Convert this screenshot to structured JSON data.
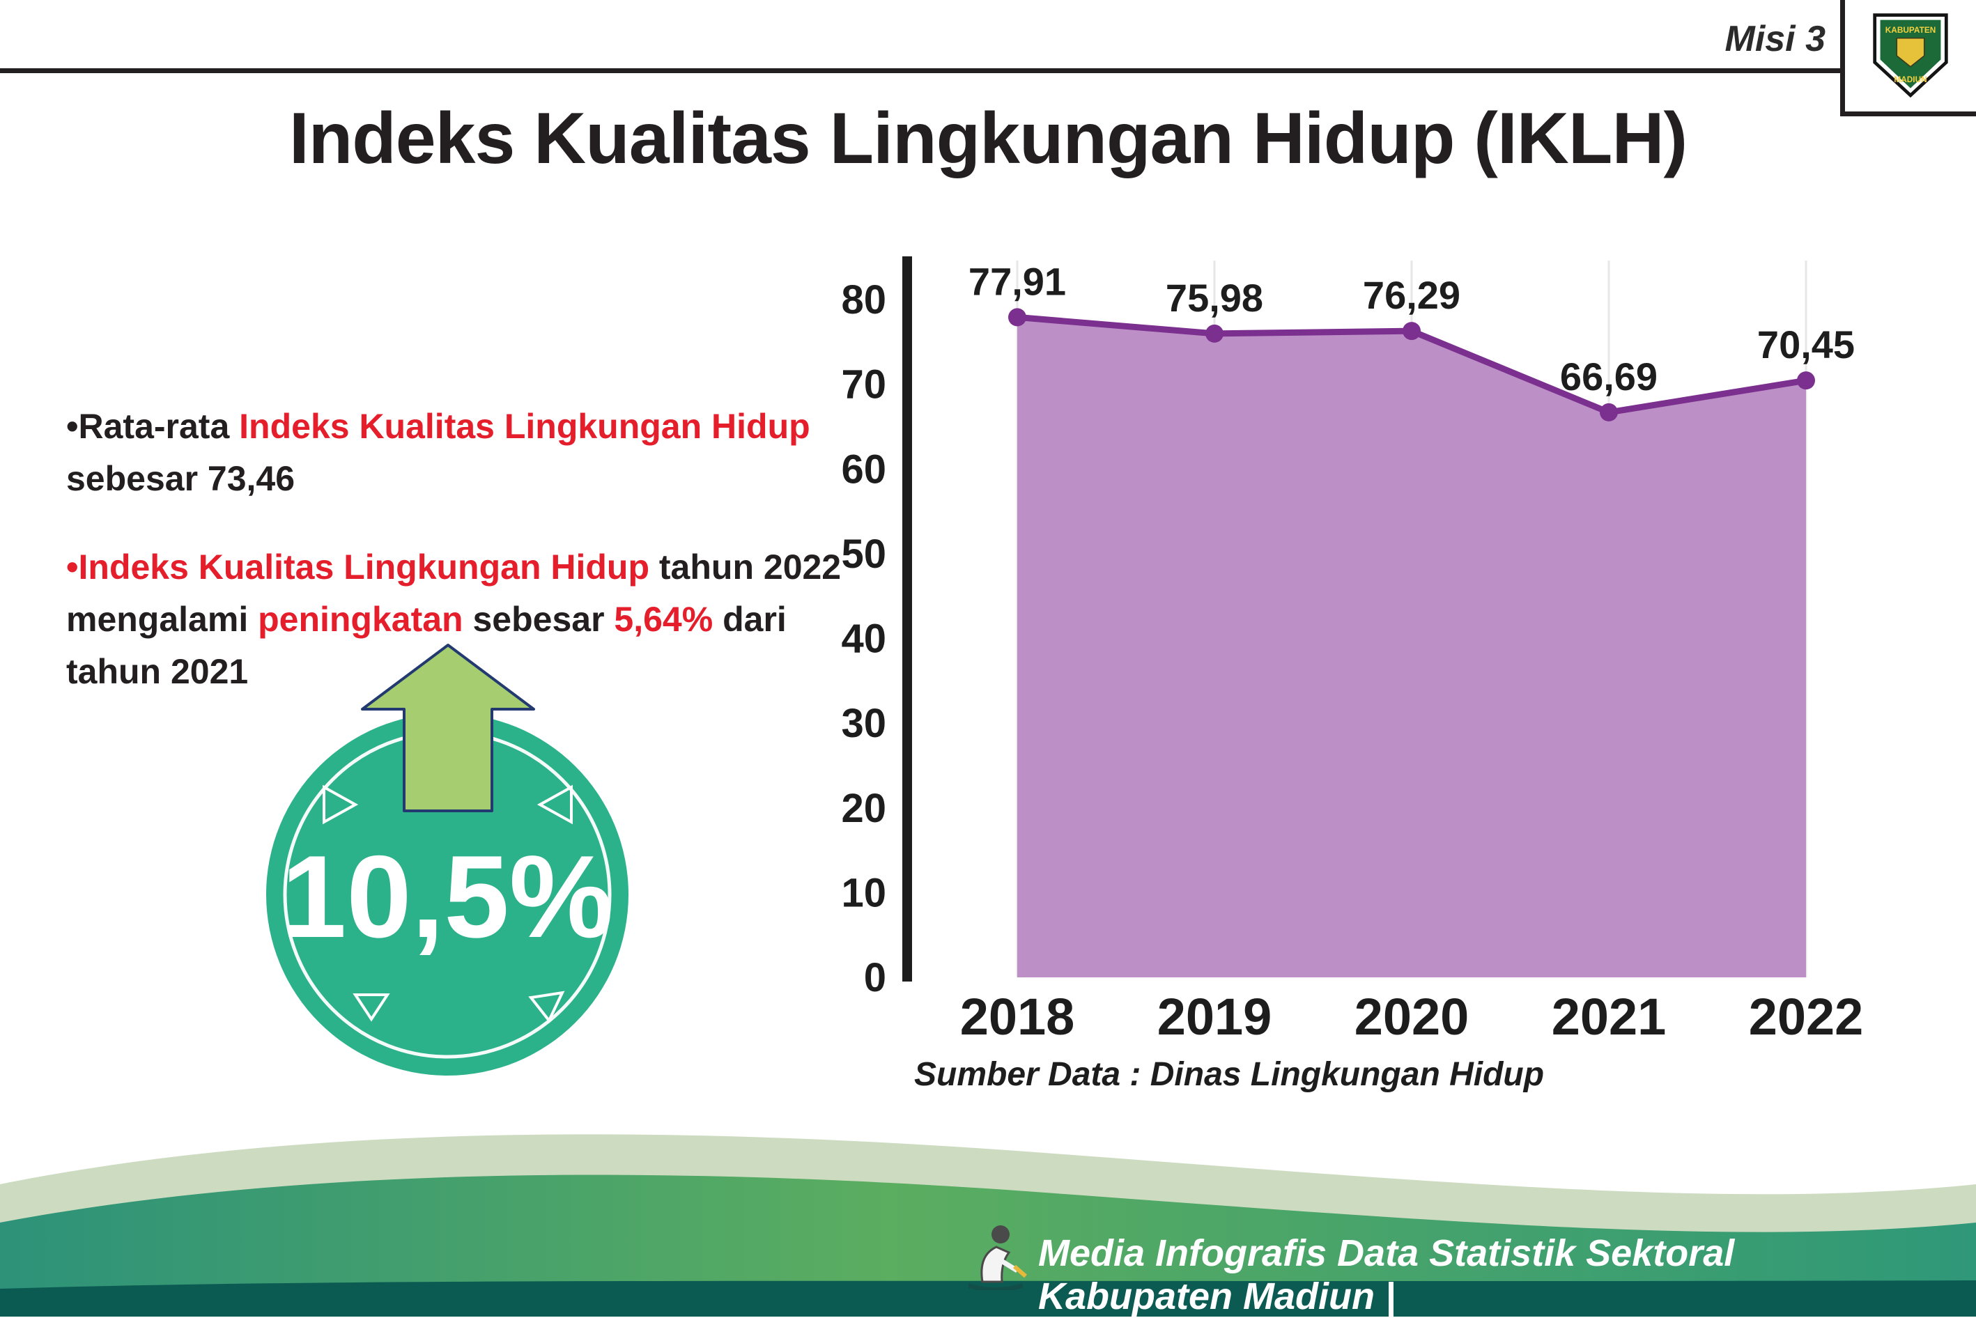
{
  "header": {
    "misi_label": "Misi 3",
    "logo": {
      "line1": "KABUPATEN",
      "line2": "MADIUN"
    }
  },
  "title": "Indeks Kualitas Lingkungan Hidup (IKLH)",
  "bullets": {
    "b1": {
      "s1": "•Rata-rata ",
      "s2": "Indeks Kualitas Lingkungan Hidup",
      "s3": " sebesar 73,46"
    },
    "b2": {
      "s1": "•Indeks Kualitas Lingkungan Hidup",
      "s2": " tahun 2022 mengalami ",
      "s3": "peningkatan",
      "s4": " sebesar ",
      "s5": "5,64%",
      "s6": " dari tahun 2021"
    }
  },
  "badge": {
    "percent": "10,5%",
    "circle_color": "#2cb28b",
    "arrow_color": "#a7cd71"
  },
  "chart_data": {
    "type": "area",
    "categories": [
      "2018",
      "2019",
      "2020",
      "2021",
      "2022"
    ],
    "values": [
      77.91,
      75.98,
      76.29,
      66.69,
      70.45
    ],
    "value_labels": [
      "77,91",
      "75,98",
      "76,29",
      "66,69",
      "70,45"
    ],
    "title": "",
    "xlabel": "",
    "ylabel": "",
    "ylim": [
      0,
      80
    ],
    "yticks": [
      0,
      10,
      20,
      30,
      40,
      50,
      60,
      70,
      80
    ],
    "grid": "light-vertical",
    "legend": "none",
    "line_color": "#7b2f8e",
    "fill_color": "#bc90c6",
    "source": "Sumber Data : Dinas Lingkungan Hidup"
  },
  "footer": {
    "credit": "Media Infografis Data Statistik Sektoral Kabupaten Madiun |"
  }
}
